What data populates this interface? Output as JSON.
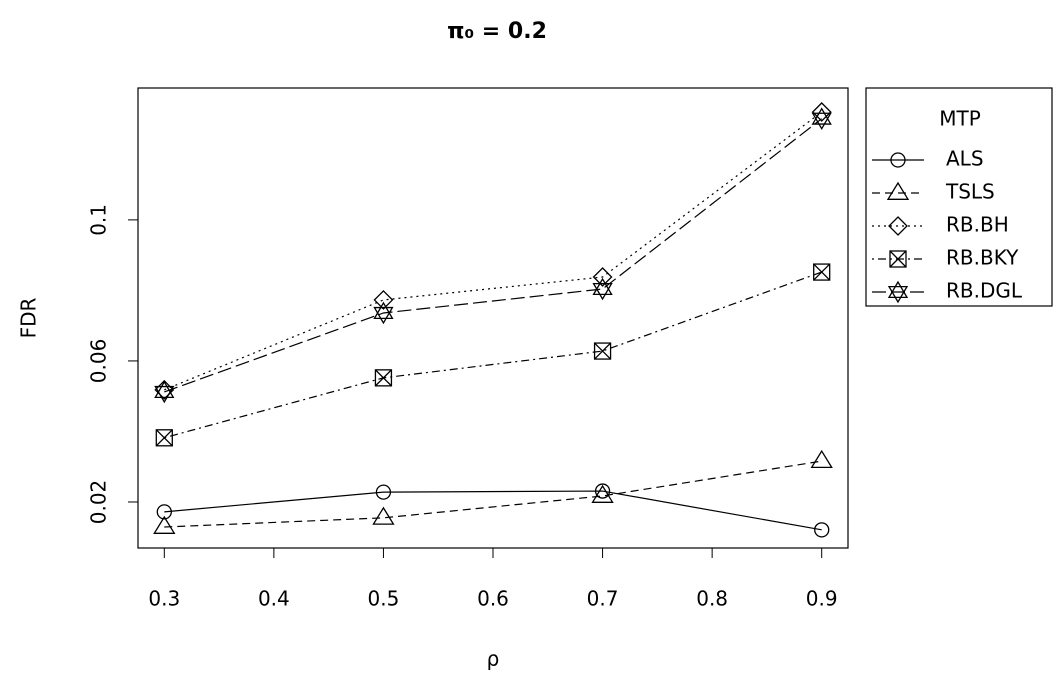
{
  "chart_data": {
    "type": "line",
    "title": "π₀ = 0.2",
    "x_label": "ρ",
    "y_label": "FDR",
    "x": [
      0.3,
      0.5,
      0.7,
      0.9
    ],
    "xlim": [
      0.276,
      0.924
    ],
    "xticks": [
      0.3,
      0.4,
      0.5,
      0.6,
      0.7,
      0.8,
      0.9
    ],
    "ylim": [
      0.00695,
      0.1374
    ],
    "yticks": [
      0.02,
      0.06,
      0.1
    ],
    "legend_title": "MTP",
    "legend_position": "right",
    "series": [
      {
        "name": "ALS",
        "color": "#000000",
        "linestyle": "solid",
        "marker": "circle",
        "values": [
          0.0172,
          0.0228,
          0.0231,
          0.0121
        ]
      },
      {
        "name": "TSLS",
        "color": "#000000",
        "linestyle": "dashed",
        "marker": "triangle",
        "values": [
          0.0129,
          0.0155,
          0.0217,
          0.0316
        ]
      },
      {
        "name": "RB.BH",
        "color": "#000000",
        "linestyle": "dotted",
        "marker": "diamond",
        "values": [
          0.0518,
          0.0773,
          0.0838,
          0.1306
        ]
      },
      {
        "name": "RB.BKY",
        "color": "#000000",
        "linestyle": "dotdash",
        "marker": "boxcross",
        "values": [
          0.0382,
          0.0552,
          0.0628,
          0.0852
        ]
      },
      {
        "name": "RB.DGL",
        "color": "#000000",
        "linestyle": "longdash",
        "marker": "star",
        "values": [
          0.0512,
          0.0736,
          0.0804,
          0.1287
        ]
      }
    ]
  }
}
